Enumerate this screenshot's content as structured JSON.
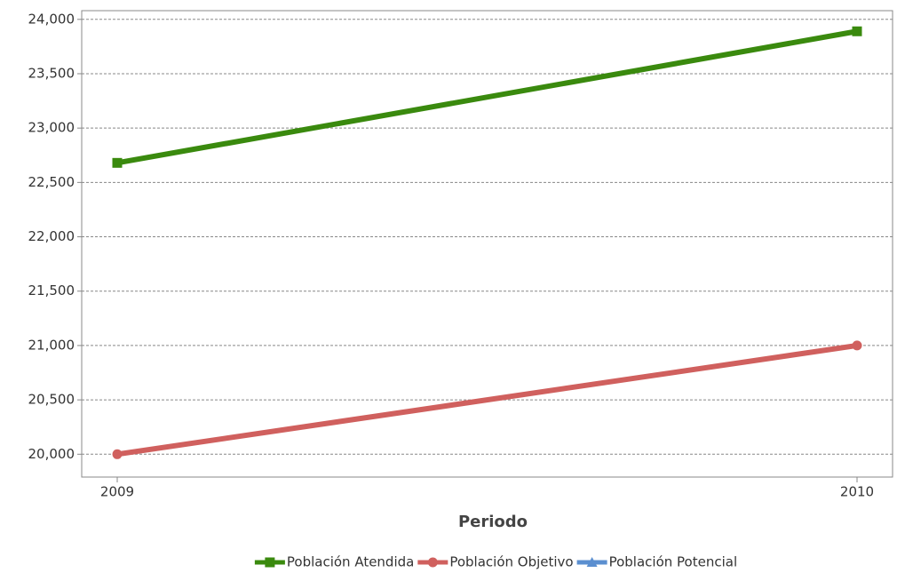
{
  "chart_data": {
    "type": "line",
    "x_label": "Periodo",
    "categories": [
      "2009",
      "2010"
    ],
    "series": [
      {
        "name": "Población Atendida",
        "color": "#3a8a0e",
        "marker": "square",
        "values": [
          22680,
          23890
        ]
      },
      {
        "name": "Población Objetivo",
        "color": "#d0605e",
        "marker": "circle",
        "values": [
          20000,
          21000
        ]
      },
      {
        "name": "Población Potencial",
        "color": "#5b8fd0",
        "marker": "triangle",
        "values": [
          null,
          null
        ]
      }
    ],
    "ylim": [
      19790,
      24080
    ],
    "yticks": [
      {
        "value": 20000,
        "label": "20,000"
      },
      {
        "value": 20500,
        "label": "20,500"
      },
      {
        "value": 21000,
        "label": "21,000"
      },
      {
        "value": 21500,
        "label": "21,500"
      },
      {
        "value": 22000,
        "label": "22,000"
      },
      {
        "value": 22500,
        "label": "22,500"
      },
      {
        "value": 23000,
        "label": "23,000"
      },
      {
        "value": 23500,
        "label": "23,500"
      },
      {
        "value": 24000,
        "label": "24,000"
      }
    ],
    "grid": true,
    "legend": "bottom"
  }
}
